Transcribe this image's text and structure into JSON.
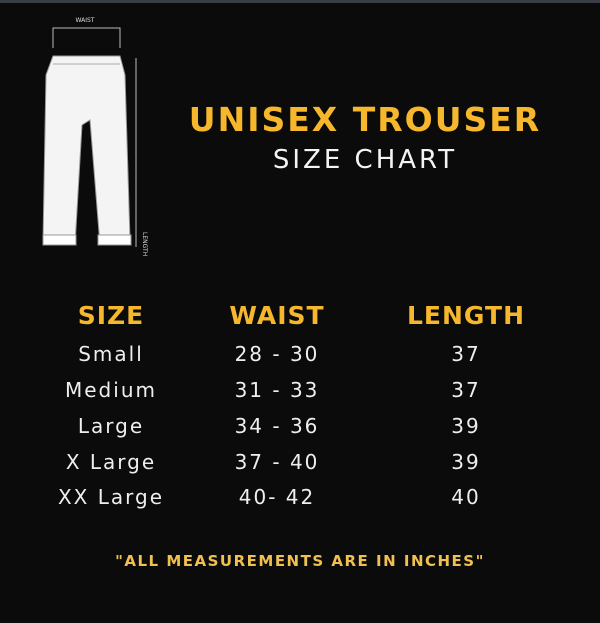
{
  "illustration": {
    "waist_label": "WAIST",
    "length_label": "LENGTH",
    "icon": "trouser-diagram"
  },
  "header": {
    "title": "UNISEX TROUSER",
    "subtitle": "SIZE CHART"
  },
  "table": {
    "columns": [
      "SIZE",
      "WAIST",
      "LENGTH"
    ],
    "rows": [
      [
        "Small",
        "28 - 30",
        "37"
      ],
      [
        "Medium",
        "31 - 33",
        "37"
      ],
      [
        "Large",
        "34 - 36",
        "39"
      ],
      [
        "X Large",
        "37 - 40",
        "39"
      ],
      [
        "XX Large",
        "40- 42",
        "40"
      ]
    ]
  },
  "footer": {
    "note": "\"ALL MEASUREMENTS ARE IN INCHES\""
  },
  "colors": {
    "accent": "#f6b72c",
    "background": "#0b0b0b",
    "text": "#eeeeee"
  }
}
